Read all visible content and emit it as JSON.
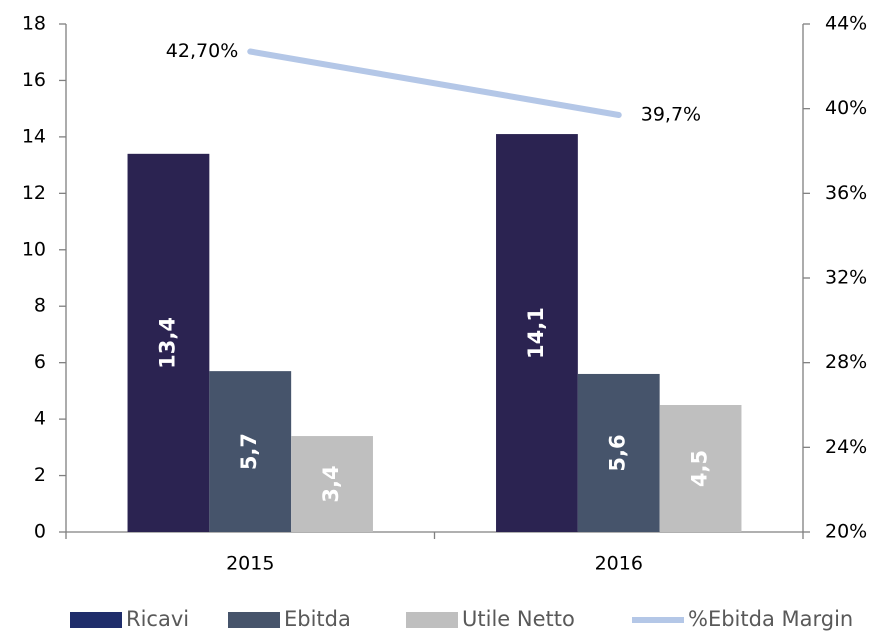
{
  "chart_data": {
    "type": "bar",
    "categories": [
      "2015",
      "2016"
    ],
    "series": [
      {
        "name": "Ricavi",
        "type": "bar",
        "color": "#2b2351",
        "legend_color": "#1f2d6b",
        "values": [
          13.4,
          14.1
        ],
        "value_labels": [
          "13,4",
          "14,1"
        ]
      },
      {
        "name": "Ebitda",
        "type": "bar",
        "color": "#46546b",
        "values": [
          5.7,
          5.6
        ],
        "value_labels": [
          "5,7",
          "5,6"
        ]
      },
      {
        "name": "Utile Netto",
        "type": "bar",
        "color": "#bfbfbf",
        "values": [
          3.4,
          4.5
        ],
        "value_labels": [
          "3,4",
          "4,5"
        ]
      },
      {
        "name": "%Ebitda Margin",
        "type": "line",
        "axis": "y2",
        "color": "#b4c7e7",
        "values": [
          42.7,
          39.7
        ],
        "value_labels": [
          "42,70%",
          "39,7%"
        ]
      }
    ],
    "ylim": [
      0,
      18
    ],
    "yticks": [
      0,
      2,
      4,
      6,
      8,
      10,
      12,
      14,
      16,
      18
    ],
    "y2lim": [
      20,
      44
    ],
    "y2ticks": [
      {
        "value": 20,
        "label": "20%"
      },
      {
        "value": 24,
        "label": "24%"
      },
      {
        "value": 28,
        "label": "28%"
      },
      {
        "value": 32,
        "label": "32%"
      },
      {
        "value": 36,
        "label": "36%"
      },
      {
        "value": 40,
        "label": "40%"
      },
      {
        "value": 44,
        "label": "44%"
      }
    ],
    "legend": "bottom",
    "grid": false
  }
}
